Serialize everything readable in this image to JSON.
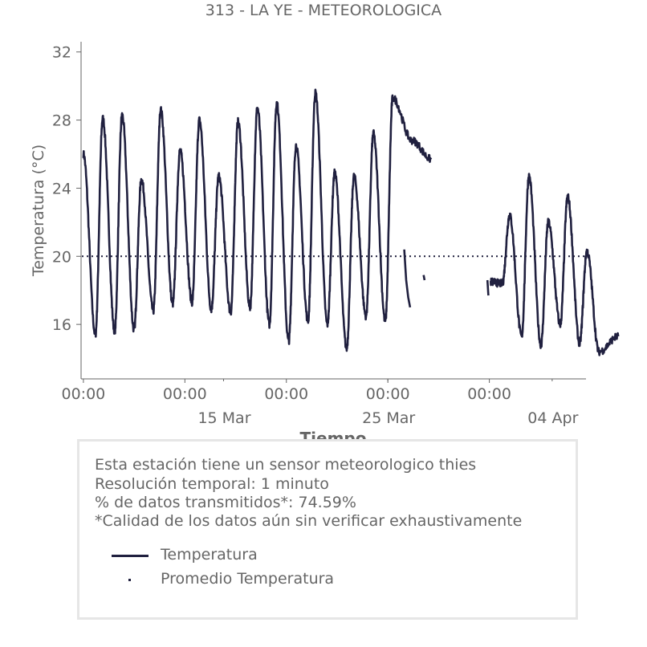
{
  "title": "313 - LA YE - METEOROLOGICA",
  "colors": {
    "series": "#20203f",
    "text": "#666666",
    "axis": "#666666",
    "box_border": "#e6e6e6"
  },
  "info": {
    "lines": [
      "Esta estación tiene un sensor meteorologico thies",
      "Resolución temporal: 1 minuto",
      "% de datos transmitidos*: 74.59%",
      "*Calidad de los datos aún sin verificar exhaustivamente"
    ]
  },
  "legend": [
    {
      "label": "Temperatura",
      "marker": "line"
    },
    {
      "label": "Promedio Temperatura",
      "marker": "dot"
    }
  ],
  "chart_data": {
    "type": "line",
    "title": "313 - LA YE - METEOROLOGICA",
    "xlabel": "Tiempo",
    "ylabel": "Temperatura (°C)",
    "x_unit": "days since first tick (00:00)",
    "xlim": [
      -0.12,
      26.0
    ],
    "ylim": [
      12.8,
      32.6
    ],
    "yticks": [
      16,
      20,
      24,
      28,
      32
    ],
    "xticks_major": [
      {
        "x": 0,
        "label": "00:00"
      },
      {
        "x": 5.25,
        "label": "00:00"
      },
      {
        "x": 10.5,
        "label": "00:00"
      },
      {
        "x": 15.75,
        "label": "00:00"
      },
      {
        "x": 21.0,
        "label": "00:00"
      }
    ],
    "xticks_minor": [
      {
        "x": 7.25,
        "label": "15 Mar"
      },
      {
        "x": 15.75,
        "label": "25 Mar"
      },
      {
        "x": 24.25,
        "label": "04 Apr"
      }
    ],
    "grid": false,
    "legend_position": "bottom (outside)",
    "series": [
      {
        "name": "Temperatura",
        "style": "solid",
        "segments": [
          {
            "start": 0,
            "minima": [
              15.4,
              15.6,
              15.7,
              16.8,
              17.2,
              17.3,
              16.9,
              16.7,
              17.0,
              16.0,
              15.0,
              16.2,
              16.0,
              14.6,
              16.5,
              16.2
            ],
            "maxima": [
              26.0,
              28.1,
              28.3,
              24.5,
              28.6,
              26.2,
              28.0,
              24.7,
              27.9,
              28.7,
              29.0,
              26.5,
              29.6,
              24.9,
              24.7,
              27.2,
              29.3,
              26.8,
              25.7
            ]
          },
          {
            "points": [
              [
                16.6,
                20.4
              ],
              [
                16.7,
                18.6
              ],
              [
                16.8,
                17.6
              ],
              [
                16.9,
                17.0
              ]
            ]
          },
          {
            "points": [
              [
                17.6,
                18.9
              ],
              [
                17.65,
                18.6
              ]
            ]
          },
          {
            "points": [
              [
                20.9,
                18.6
              ],
              [
                20.95,
                17.7
              ]
            ]
          },
          {
            "start": 21.05,
            "minima": [
              18.4,
              15.3,
              14.8,
              16.0,
              14.9,
              14.4,
              15.3
            ],
            "maxima": [
              18.5,
              22.4,
              24.7,
              22.0,
              23.5,
              20.3
            ]
          }
        ]
      },
      {
        "name": "Promedio Temperatura",
        "style": "dotted",
        "value": 20.0
      }
    ]
  }
}
